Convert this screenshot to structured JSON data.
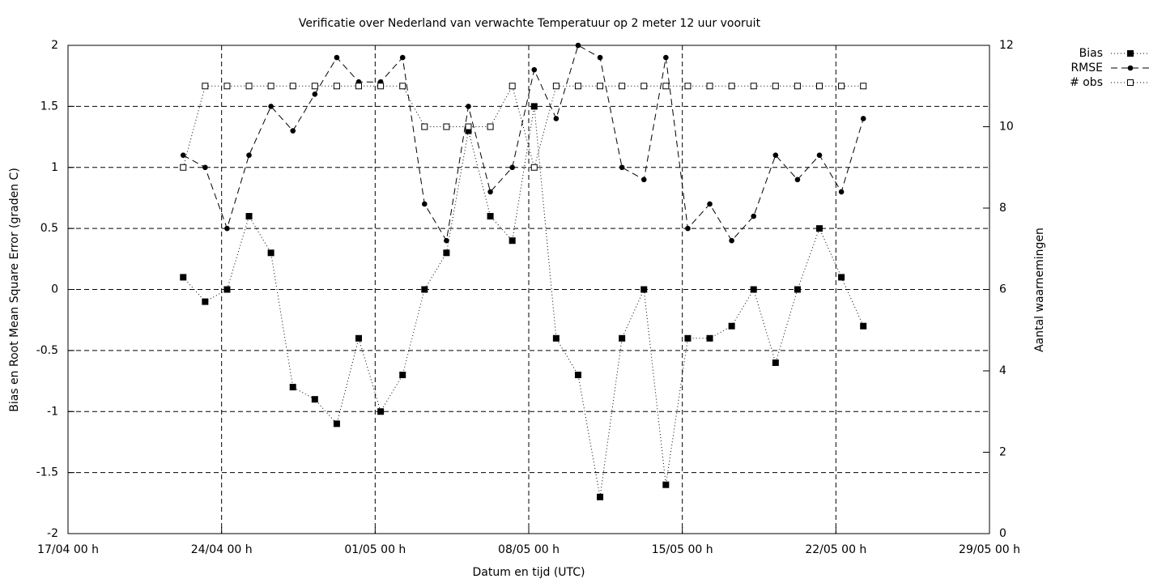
{
  "chart_data": {
    "type": "line",
    "title": "Verificatie over Nederland van verwachte Temperatuur op 2 meter 12 uur vooruit",
    "xlabel": "Datum en tijd (UTC)",
    "ylabel": "Bias en Root Mean Square Error (graden C)",
    "y2label": "Aantal waarnemingen",
    "x": [
      "22/04 06 h",
      "23/04 06 h",
      "24/04 06 h",
      "25/04 06 h",
      "26/04 06 h",
      "27/04 06 h",
      "28/04 06 h",
      "29/04 06 h",
      "30/04 06 h",
      "01/05 06 h",
      "02/05 06 h",
      "03/05 06 h",
      "04/05 06 h",
      "05/05 06 h",
      "06/05 06 h",
      "07/05 06 h",
      "08/05 06 h",
      "09/05 06 h",
      "10/05 06 h",
      "11/05 06 h",
      "12/05 06 h",
      "13/05 06 h",
      "14/05 06 h",
      "15/05 06 h",
      "16/05 06 h",
      "17/05 06 h",
      "18/05 06 h",
      "19/05 06 h",
      "20/05 06 h",
      "21/05 06 h",
      "22/05 06 h",
      "23/05 06 h"
    ],
    "xlim": [
      "17/04 00 h",
      "29/05 00 h"
    ],
    "xticks": [
      "17/04 00 h",
      "24/04 00 h",
      "01/05 00 h",
      "08/05 00 h",
      "15/05 00 h",
      "22/05 00 h",
      "29/05 00 h"
    ],
    "ylim": [
      -2,
      2
    ],
    "yticks": [
      -2,
      -1.5,
      -1,
      -0.5,
      0,
      0.5,
      1,
      1.5,
      2
    ],
    "y2lim": [
      0,
      12
    ],
    "y2ticks": [
      0,
      2,
      4,
      6,
      8,
      10,
      12
    ],
    "grid": true,
    "legend": "outside-top-right",
    "series": [
      {
        "name": "Bias",
        "color": "#000000",
        "dash": "dotted",
        "marker": "square-filled",
        "values": [
          0.1,
          -0.1,
          0,
          0.6,
          0.3,
          -0.8,
          -0.9,
          -1.1,
          -0.4,
          -1.0,
          -0.7,
          0,
          0.3,
          1.3,
          0.6,
          0.4,
          1.5,
          -0.4,
          -0.7,
          -1.7,
          -0.4,
          0,
          -1.6,
          -0.4,
          -0.4,
          -0.3,
          0,
          -0.6,
          0,
          0.5,
          0.1,
          -0.3
        ]
      },
      {
        "name": "RMSE",
        "color": "#000000",
        "dash": "dashed",
        "marker": "circle-filled",
        "values": [
          1.1,
          1.0,
          0.5,
          1.1,
          1.5,
          1.3,
          1.6,
          1.9,
          1.7,
          1.7,
          1.9,
          0.7,
          0.4,
          1.5,
          0.8,
          1.0,
          1.8,
          1.4,
          2.0,
          1.9,
          1.0,
          0.9,
          1.9,
          0.5,
          0.7,
          0.4,
          0.6,
          1.1,
          0.9,
          1.1,
          0.8,
          1.4
        ]
      },
      {
        "name": "# obs",
        "color": "#000000",
        "dash": "dotted",
        "marker": "square-open",
        "axis": "y2",
        "values": [
          9,
          11,
          11,
          11,
          11,
          11,
          11,
          11,
          11,
          11,
          11,
          10,
          10,
          10,
          10,
          11,
          9,
          11,
          11,
          11,
          11,
          11,
          11,
          11,
          11,
          11,
          11,
          11,
          11,
          11,
          11,
          11
        ]
      }
    ]
  }
}
